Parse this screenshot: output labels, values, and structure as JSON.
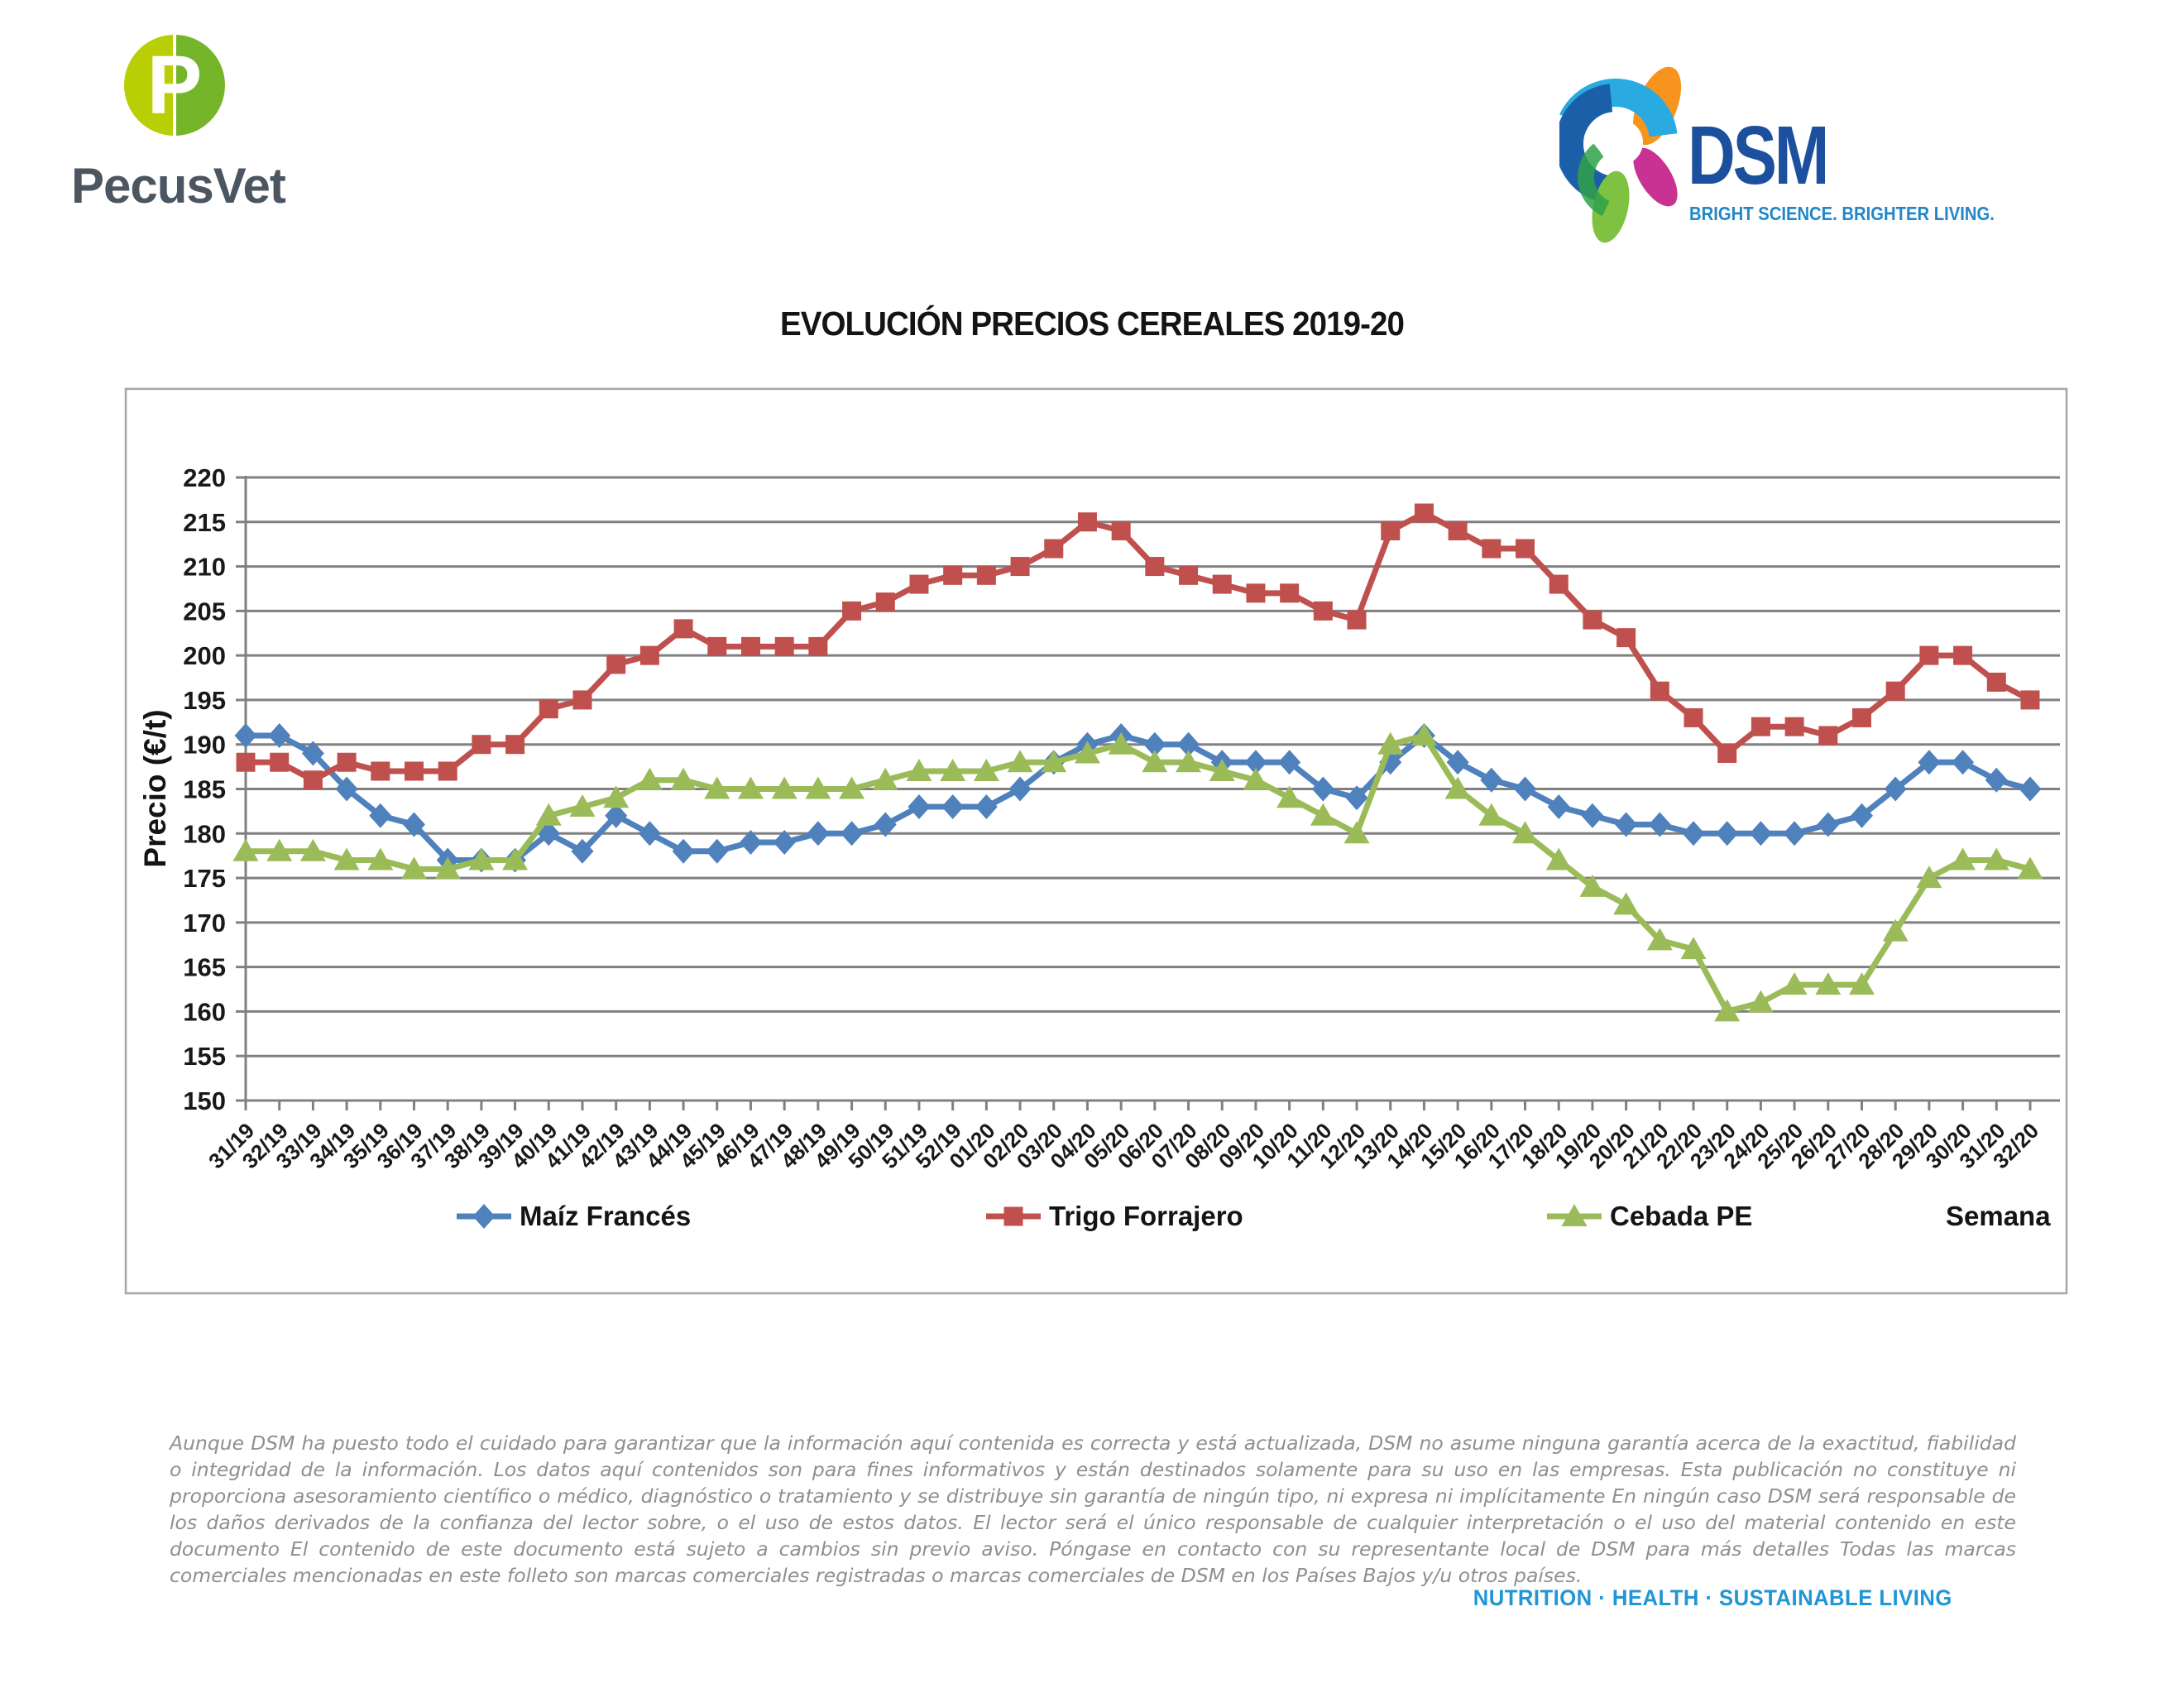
{
  "header": {
    "pecusvet": {
      "monogram": "P",
      "name": "PecusVet"
    },
    "dsm": {
      "name": "DSM",
      "tagline": "BRIGHT SCIENCE. BRIGHTER LIVING."
    }
  },
  "title": "EVOLUCIÓN PRECIOS CEREALES 2019-20",
  "chart_data": {
    "type": "line",
    "title": "EVOLUCIÓN PRECIOS CEREALES 2019-20",
    "ylabel": "Precio (€/t)",
    "xlabel": "Semana",
    "ylim": [
      150,
      220
    ],
    "ytick_step": 5,
    "grid": true,
    "legend_position": "bottom",
    "categories": [
      "31/19",
      "32/19",
      "33/19",
      "34/19",
      "35/19",
      "36/19",
      "37/19",
      "38/19",
      "39/19",
      "40/19",
      "41/19",
      "42/19",
      "43/19",
      "44/19",
      "45/19",
      "46/19",
      "47/19",
      "48/19",
      "49/19",
      "50/19",
      "51/19",
      "52/19",
      "01/20",
      "02/20",
      "03/20",
      "04/20",
      "05/20",
      "06/20",
      "07/20",
      "08/20",
      "09/20",
      "10/20",
      "11/20",
      "12/20",
      "13/20",
      "14/20",
      "15/20",
      "16/20",
      "17/20",
      "18/20",
      "19/20",
      "20/20",
      "21/20",
      "22/20",
      "23/20",
      "24/20",
      "25/20",
      "26/20",
      "27/20",
      "28/20",
      "29/20",
      "30/20",
      "31/20",
      "32/20"
    ],
    "series": [
      {
        "name": "Maíz Francés",
        "color": "#4F81BD",
        "marker": "diamond",
        "values": [
          191,
          191,
          189,
          185,
          182,
          181,
          177,
          177,
          177,
          180,
          178,
          182,
          180,
          178,
          178,
          179,
          179,
          180,
          180,
          181,
          183,
          183,
          183,
          185,
          188,
          190,
          191,
          190,
          190,
          188,
          188,
          188,
          185,
          184,
          188,
          191,
          188,
          186,
          185,
          183,
          182,
          181,
          181,
          180,
          180,
          180,
          180,
          181,
          182,
          185,
          188,
          188,
          186,
          185
        ]
      },
      {
        "name": "Trigo Forrajero",
        "color": "#C0504D",
        "marker": "square",
        "values": [
          188,
          188,
          186,
          188,
          187,
          187,
          187,
          190,
          190,
          194,
          195,
          199,
          200,
          203,
          201,
          201,
          201,
          201,
          205,
          206,
          208,
          209,
          209,
          210,
          212,
          215,
          214,
          210,
          209,
          208,
          207,
          207,
          205,
          204,
          214,
          216,
          214,
          212,
          212,
          208,
          204,
          202,
          196,
          193,
          189,
          192,
          192,
          191,
          193,
          196,
          200,
          200,
          197,
          195
        ]
      },
      {
        "name": "Cebada PE",
        "color": "#9BBB59",
        "marker": "triangle",
        "values": [
          178,
          178,
          178,
          177,
          177,
          176,
          176,
          177,
          177,
          182,
          183,
          184,
          186,
          186,
          185,
          185,
          185,
          185,
          185,
          186,
          187,
          187,
          187,
          188,
          188,
          189,
          190,
          188,
          188,
          187,
          186,
          184,
          182,
          180,
          190,
          191,
          185,
          182,
          180,
          177,
          174,
          172,
          168,
          167,
          160,
          161,
          163,
          163,
          163,
          169,
          175,
          177,
          177,
          176
        ]
      }
    ]
  },
  "footer": {
    "disclaimer": "Aunque DSM ha puesto todo el cuidado para garantizar que la información aquí contenida es correcta y está actualizada, DSM no asume ninguna garantía acerca de la exactitud, fiabilidad o integridad de la información. Los datos aquí contenidos son para fines informativos y están destinados solamente para su uso en las empresas. Esta publicación no constituye ni proporciona asesoramiento científico o médico, diagnóstico o tratamiento y se distribuye sin garantía de ningún tipo, ni expresa ni implícitamente En ningún caso DSM será responsable de los daños derivados de la confianza del lector sobre, o el uso de estos datos. El lector será el único responsable de cualquier interpretación o el uso del material contenido en este documento El contenido de este documento está sujeto a cambios sin previo aviso. Póngase en contacto con su representante local de DSM para más detalles Todas las marcas comerciales mencionadas en este folleto son marcas comerciales registradas o marcas comerciales de DSM en los Países Bajos y/u otros países.",
    "tagline": "NUTRITION · HEALTH · SUSTAINABLE LIVING"
  }
}
